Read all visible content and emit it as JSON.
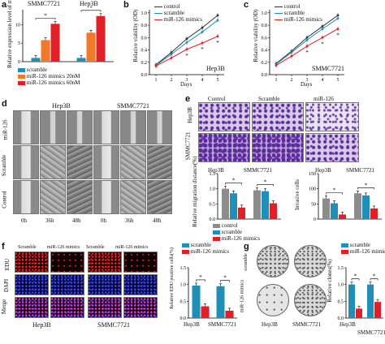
{
  "panel_labels": [
    "a",
    "b",
    "c",
    "d",
    "e",
    "f",
    "g"
  ],
  "a": {
    "cell_lines": [
      "SMMC7721",
      "Hep3B"
    ],
    "ylabel": "Relative expression level of miR-126",
    "legend": [
      "scramble",
      "miR-126 mimics 20nM",
      "miR-126 mimics 60nM"
    ],
    "sig": "*"
  },
  "b": {
    "cell": "Hep3B",
    "xlabel": "Days",
    "ylabel": "Relative viability (OD)",
    "legend": [
      "control",
      "scramble",
      "miR-126 mimics"
    ]
  },
  "c": {
    "cell": "SMMC7721",
    "xlabel": "Days",
    "ylabel": "Relative viability (OD)",
    "legend": [
      "control",
      "scramble",
      "miR-126 mimics"
    ]
  },
  "d": {
    "cell_lines": [
      "Hep3B",
      "SMMC7721"
    ],
    "rows": [
      "miR-126",
      "Scramble",
      "Control"
    ],
    "times": [
      "0h",
      "36h",
      "48h",
      "0h",
      "36h",
      "48h"
    ]
  },
  "e": {
    "cols": [
      "Control",
      "Scramble",
      "miR-126"
    ],
    "rows": [
      "Hep3B",
      "SMMC7721"
    ],
    "legend": [
      "control",
      "scramble",
      "miR-126 mimics"
    ],
    "left_ylabel": "Relative migration distance(%)",
    "right_ylabel": "Invasive cells",
    "cell_lines": [
      "Hep3B",
      "SMMC7721"
    ]
  },
  "f": {
    "col_labels": [
      "Scramble",
      "miR-126 mimics",
      "Scramble",
      "miR-126 mimics"
    ],
    "rows": [
      "EDU",
      "DAPI",
      "Merge"
    ],
    "cell_lines": [
      "Hep3B",
      "SMMC7721"
    ],
    "legend": [
      "scramble",
      "miR-126 mimics"
    ],
    "ylabel": "Relative EDU positive cells(%)"
  },
  "g": {
    "rows": [
      "scramble",
      "miR-126 mimics"
    ],
    "cell_lines": [
      "Hep3B",
      "SMMC7721"
    ],
    "legend": [
      "scramble",
      "miR-126 mimics"
    ],
    "ylabel": "Relative clones(%)"
  },
  "colors": {
    "teal": "#1f8fb8",
    "orange": "#f07a2a",
    "red": "#e21f26",
    "dark": "#333333",
    "gray": "#8c8c8c"
  },
  "chart_data": [
    {
      "id": "a",
      "type": "bar",
      "categories": [
        "SMMC7721",
        "Hep3B"
      ],
      "series": [
        {
          "name": "scramble",
          "values": [
            1.0,
            1.0
          ]
        },
        {
          "name": "miR-126 mimics 20nM",
          "values": [
            5.8,
            7.8
          ]
        },
        {
          "name": "miR-126 mimics 60nM",
          "values": [
            10.2,
            12.3
          ]
        }
      ],
      "ylim": [
        0,
        14
      ],
      "yticks": [
        0,
        5,
        10
      ],
      "ylabel": "Relative expression level of miR-126"
    },
    {
      "id": "b",
      "type": "line",
      "x": [
        1,
        2,
        3,
        4,
        5
      ],
      "xlabel": "Days",
      "ylabel": "Relative viability (OD)",
      "ylim": [
        0,
        1.05
      ],
      "yticks": [
        0.0,
        0.2,
        0.4,
        0.6,
        0.8,
        1.0
      ],
      "series": [
        {
          "name": "control",
          "values": [
            0.16,
            0.36,
            0.58,
            0.76,
            0.96
          ]
        },
        {
          "name": "scramble",
          "values": [
            0.15,
            0.33,
            0.52,
            0.69,
            0.88
          ]
        },
        {
          "name": "miR-126 mimics",
          "values": [
            0.14,
            0.27,
            0.41,
            0.51,
            0.62
          ]
        }
      ]
    },
    {
      "id": "c",
      "type": "line",
      "x": [
        1,
        2,
        3,
        4,
        5
      ],
      "xlabel": "Days",
      "ylabel": "Relative viability (OD)",
      "ylim": [
        0,
        1.05
      ],
      "yticks": [
        0.0,
        0.2,
        0.4,
        0.6,
        0.8,
        1.0
      ],
      "series": [
        {
          "name": "control",
          "values": [
            0.18,
            0.38,
            0.6,
            0.78,
            0.96
          ]
        },
        {
          "name": "scramble",
          "values": [
            0.17,
            0.36,
            0.56,
            0.74,
            0.91
          ]
        },
        {
          "name": "miR-126 mimics",
          "values": [
            0.15,
            0.3,
            0.46,
            0.6,
            0.74
          ]
        }
      ]
    },
    {
      "id": "e-migration",
      "type": "bar",
      "categories": [
        "Hep3B",
        "SMMC7721"
      ],
      "series": [
        {
          "name": "control",
          "values": [
            1.0,
            0.95
          ]
        },
        {
          "name": "scramble",
          "values": [
            0.85,
            0.92
          ]
        },
        {
          "name": "miR-126 mimics",
          "values": [
            0.38,
            0.52
          ]
        }
      ],
      "ylim": [
        0,
        1.5
      ],
      "yticks": [
        0.0,
        0.5,
        1.0,
        1.5
      ],
      "ylabel": "Relative migration distance(%)"
    },
    {
      "id": "e-invasion",
      "type": "bar",
      "categories": [
        "Hep3B",
        "SMMC7721"
      ],
      "series": [
        {
          "name": "control",
          "values": [
            68,
            85
          ]
        },
        {
          "name": "scramble",
          "values": [
            52,
            78
          ]
        },
        {
          "name": "miR-126 mimics",
          "values": [
            15,
            35
          ]
        }
      ],
      "ylim": [
        0,
        150
      ],
      "yticks": [
        0,
        50,
        100,
        150
      ],
      "ylabel": "Invasive cells"
    },
    {
      "id": "f",
      "type": "bar",
      "categories": [
        "Hep3B",
        "SMMC7721"
      ],
      "series": [
        {
          "name": "scramble",
          "values": [
            0.97,
            0.95
          ]
        },
        {
          "name": "miR-126 mimics",
          "values": [
            0.35,
            0.22
          ]
        }
      ],
      "ylim": [
        0,
        1.5
      ],
      "yticks": [
        0.0,
        0.5,
        1.0,
        1.5
      ],
      "ylabel": "Relative EDU positive cells(%)"
    },
    {
      "id": "g",
      "type": "bar",
      "categories": [
        "Hep3B",
        "SMMC7721"
      ],
      "series": [
        {
          "name": "scramble",
          "values": [
            1.0,
            1.0
          ]
        },
        {
          "name": "miR-126 mimics",
          "values": [
            0.28,
            0.48
          ]
        }
      ],
      "ylim": [
        0,
        1.5
      ],
      "yticks": [
        0.0,
        0.5,
        1.0,
        1.5
      ],
      "ylabel": "Relative clones(%)"
    }
  ]
}
